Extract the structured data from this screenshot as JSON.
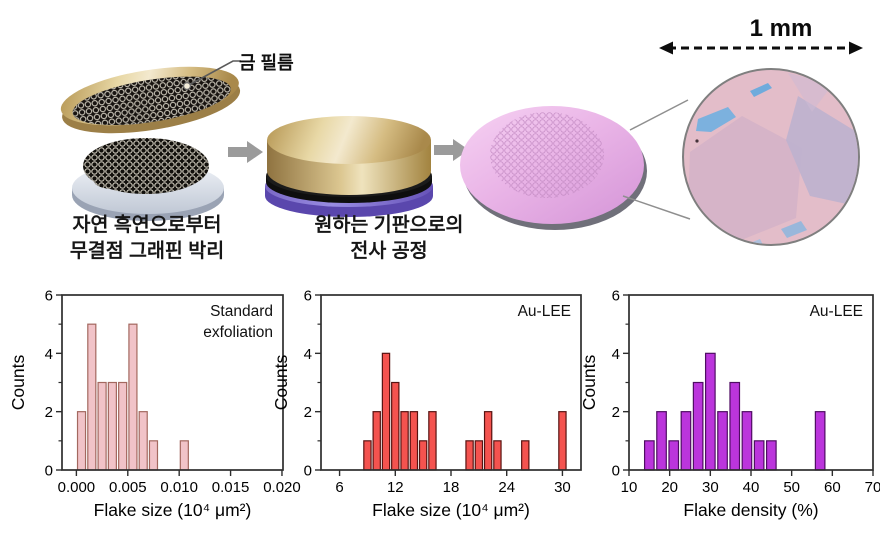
{
  "illustration": {
    "gold_film_label": "금 필름",
    "step1_caption": [
      "자연 흑연으로부터",
      "무결점 그래핀 박리"
    ],
    "step2_caption": [
      "원하는 기판으로의",
      "전사 공정"
    ],
    "scale_label": "1 mm",
    "colors": {
      "gold": "#d9bc82",
      "substrate_purple": "#7e6ccb",
      "wafer_pink": "#e9b4e4",
      "graphite_black": "#14110e",
      "micrograph_pink": "#e3bdc9",
      "flake_blue": "#7cb1de",
      "flake_lavender": "#bfb2cf"
    }
  },
  "chart_data": [
    {
      "type": "bar",
      "name": "standard-exfoliation-flake-size",
      "annotation_lines": [
        "Standard",
        "exfoliation"
      ],
      "xlabel": "Flake size (10⁴ μm²)",
      "ylabel": "Counts",
      "xlim": [
        -0.0014,
        0.0201
      ],
      "ylim": [
        0,
        6
      ],
      "xticks": [
        {
          "v": 0,
          "label": "0.000"
        },
        {
          "v": 0.005,
          "label": "0.005"
        },
        {
          "v": 0.01,
          "label": "0.010"
        },
        {
          "v": 0.015,
          "label": "0.015"
        },
        {
          "v": 0.02,
          "label": "0.020"
        }
      ],
      "yticks": [
        0,
        2,
        4,
        6
      ],
      "yminorticks": [
        1,
        3,
        5
      ],
      "binwidth": 0.001,
      "centers": [
        0.0005,
        0.0015,
        0.0025,
        0.0035,
        0.0045,
        0.0055,
        0.0065,
        0.0075,
        0.0105
      ],
      "counts": [
        2,
        5,
        3,
        3,
        3,
        5,
        2,
        1,
        1
      ],
      "grid": false,
      "colors": {
        "fill": "#f1c3c8",
        "stroke": "#a3685f"
      }
    },
    {
      "type": "bar",
      "name": "au-lee-flake-size",
      "annotation_lines": [
        "Au-LEE"
      ],
      "xlabel": "Flake size (10⁴ μm²)",
      "ylabel": "Counts",
      "xlim": [
        4,
        32
      ],
      "ylim": [
        0,
        6
      ],
      "xticks": [
        {
          "v": 6,
          "label": "6"
        },
        {
          "v": 12,
          "label": "12"
        },
        {
          "v": 18,
          "label": "18"
        },
        {
          "v": 24,
          "label": "24"
        },
        {
          "v": 30,
          "label": "30"
        }
      ],
      "yticks": [
        0,
        2,
        4,
        6
      ],
      "yminorticks": [
        1,
        3,
        5
      ],
      "binwidth": 1,
      "centers": [
        9,
        10,
        11,
        12,
        13,
        14,
        15,
        16,
        20,
        21,
        22,
        23,
        26,
        30
      ],
      "counts": [
        1,
        2,
        4,
        3,
        2,
        2,
        1,
        2,
        1,
        1,
        2,
        1,
        1,
        2
      ],
      "grid": false,
      "colors": {
        "fill": "#f4534f",
        "stroke": "#571311"
      }
    },
    {
      "type": "bar",
      "name": "au-lee-flake-density",
      "annotation_lines": [
        "Au-LEE"
      ],
      "xlabel": "Flake density (%)",
      "ylabel": "Counts",
      "xlim": [
        10,
        70
      ],
      "ylim": [
        0,
        6
      ],
      "xticks": [
        {
          "v": 10,
          "label": "10"
        },
        {
          "v": 20,
          "label": "20"
        },
        {
          "v": 30,
          "label": "30"
        },
        {
          "v": 40,
          "label": "40"
        },
        {
          "v": 50,
          "label": "50"
        },
        {
          "v": 60,
          "label": "60"
        },
        {
          "v": 70,
          "label": "70"
        }
      ],
      "yticks": [
        0,
        2,
        4,
        6
      ],
      "yminorticks": [
        1,
        3,
        5
      ],
      "binwidth": 3,
      "centers": [
        15,
        18,
        21,
        24,
        27,
        30,
        33,
        36,
        39,
        42,
        45,
        57
      ],
      "counts": [
        1,
        2,
        1,
        2,
        3,
        4,
        2,
        3,
        2,
        1,
        1,
        2
      ],
      "grid": false,
      "colors": {
        "fill": "#bb35dc",
        "stroke": "#4f0d63"
      }
    }
  ]
}
